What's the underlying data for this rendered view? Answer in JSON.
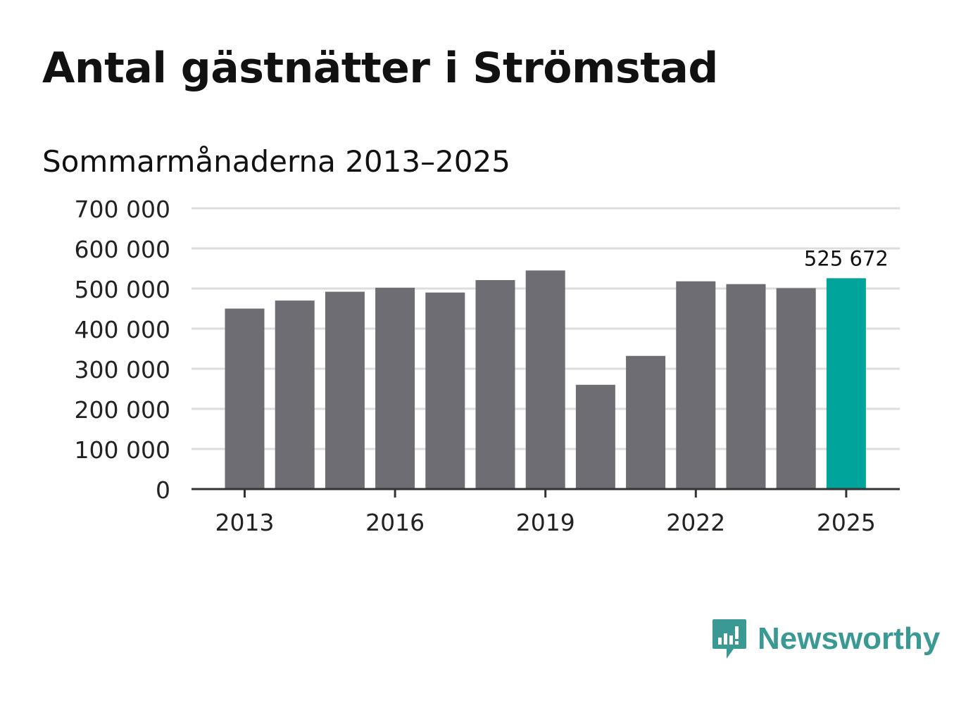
{
  "title": "Antal gästnätter i Strömstad",
  "subtitle": "Sommarmånaderna 2013–2025",
  "brand": {
    "name": "Newsworthy",
    "icon": "newsworthy-logo-icon",
    "color": "#3a9a93"
  },
  "colors": {
    "bar": "#6e6d73",
    "highlight": "#00a49a",
    "grid": "#dddddd",
    "axis": "#333333"
  },
  "chart_data": {
    "type": "bar",
    "categories": [
      "2013",
      "2014",
      "2015",
      "2016",
      "2017",
      "2018",
      "2019",
      "2020",
      "2021",
      "2022",
      "2023",
      "2024",
      "2025"
    ],
    "x_tick_labels": [
      "2013",
      "2016",
      "2019",
      "2022",
      "2025"
    ],
    "values": [
      450000,
      470000,
      492000,
      502000,
      490000,
      521000,
      545000,
      260000,
      332000,
      518000,
      511000,
      501000,
      525672
    ],
    "highlight_index": 12,
    "annotation": {
      "category": "2025",
      "text": "525 672"
    },
    "y_ticks": [
      0,
      100000,
      200000,
      300000,
      400000,
      500000,
      600000,
      700000
    ],
    "y_tick_labels": [
      "0",
      "100 000",
      "200 000",
      "300 000",
      "400 000",
      "500 000",
      "600 000",
      "700 000"
    ],
    "ylim": [
      0,
      700000
    ],
    "grid": true,
    "xlabel": "",
    "ylabel": ""
  }
}
